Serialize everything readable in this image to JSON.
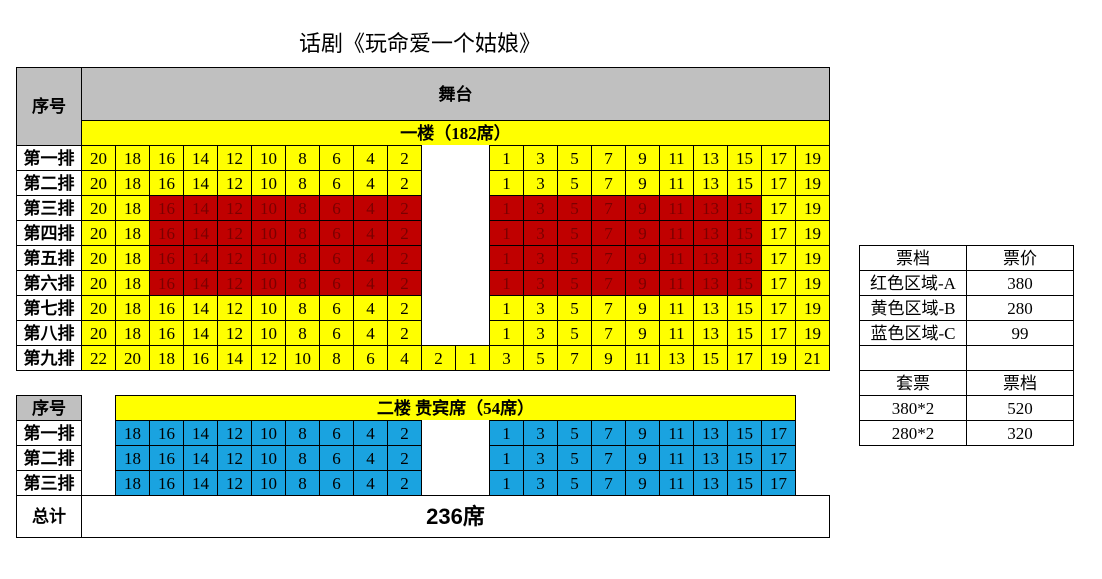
{
  "title": "话剧《玩命爱一个姑娘》",
  "colors": {
    "yellow": "#ffff00",
    "red": "#c00000",
    "blue": "#1aa3e0",
    "gray": "#c0c0c0"
  },
  "floor1": {
    "header_label": "序号",
    "stage": "舞台",
    "title": "一楼（182席）",
    "rows": [
      {
        "label": "第一排",
        "seats": [
          20,
          18,
          16,
          14,
          12,
          10,
          8,
          6,
          4,
          2,
          null,
          null,
          1,
          3,
          5,
          7,
          9,
          11,
          13,
          15,
          17,
          19
        ],
        "red": []
      },
      {
        "label": "第二排",
        "seats": [
          20,
          18,
          16,
          14,
          12,
          10,
          8,
          6,
          4,
          2,
          null,
          null,
          1,
          3,
          5,
          7,
          9,
          11,
          13,
          15,
          17,
          19
        ],
        "red": []
      },
      {
        "label": "第三排",
        "seats": [
          20,
          18,
          16,
          14,
          12,
          10,
          8,
          6,
          4,
          2,
          null,
          null,
          1,
          3,
          5,
          7,
          9,
          11,
          13,
          15,
          17,
          19
        ],
        "red": [
          2,
          3,
          4,
          5,
          6,
          7,
          8,
          9,
          12,
          13,
          14,
          15,
          16,
          17,
          18,
          19
        ]
      },
      {
        "label": "第四排",
        "seats": [
          20,
          18,
          16,
          14,
          12,
          10,
          8,
          6,
          4,
          2,
          null,
          null,
          1,
          3,
          5,
          7,
          9,
          11,
          13,
          15,
          17,
          19
        ],
        "red": [
          2,
          3,
          4,
          5,
          6,
          7,
          8,
          9,
          12,
          13,
          14,
          15,
          16,
          17,
          18,
          19
        ]
      },
      {
        "label": "第五排",
        "seats": [
          20,
          18,
          16,
          14,
          12,
          10,
          8,
          6,
          4,
          2,
          null,
          null,
          1,
          3,
          5,
          7,
          9,
          11,
          13,
          15,
          17,
          19
        ],
        "red": [
          2,
          3,
          4,
          5,
          6,
          7,
          8,
          9,
          12,
          13,
          14,
          15,
          16,
          17,
          18,
          19
        ]
      },
      {
        "label": "第六排",
        "seats": [
          20,
          18,
          16,
          14,
          12,
          10,
          8,
          6,
          4,
          2,
          null,
          null,
          1,
          3,
          5,
          7,
          9,
          11,
          13,
          15,
          17,
          19
        ],
        "red": [
          2,
          3,
          4,
          5,
          6,
          7,
          8,
          9,
          12,
          13,
          14,
          15,
          16,
          17,
          18,
          19
        ]
      },
      {
        "label": "第七排",
        "seats": [
          20,
          18,
          16,
          14,
          12,
          10,
          8,
          6,
          4,
          2,
          null,
          null,
          1,
          3,
          5,
          7,
          9,
          11,
          13,
          15,
          17,
          19
        ],
        "red": []
      },
      {
        "label": "第八排",
        "seats": [
          20,
          18,
          16,
          14,
          12,
          10,
          8,
          6,
          4,
          2,
          null,
          null,
          1,
          3,
          5,
          7,
          9,
          11,
          13,
          15,
          17,
          19
        ],
        "red": []
      },
      {
        "label": "第九排",
        "seats": [
          22,
          20,
          18,
          16,
          14,
          12,
          10,
          8,
          6,
          4,
          2,
          1,
          3,
          5,
          7,
          9,
          11,
          13,
          15,
          17,
          19,
          21
        ],
        "red": []
      }
    ]
  },
  "floor2": {
    "header_label": "序号",
    "title": "二楼 贵宾席（54席）",
    "rows": [
      {
        "label": "第一排",
        "seats": [
          null,
          18,
          16,
          14,
          12,
          10,
          8,
          6,
          4,
          2,
          null,
          null,
          1,
          3,
          5,
          7,
          9,
          11,
          13,
          15,
          17,
          null
        ]
      },
      {
        "label": "第二排",
        "seats": [
          null,
          18,
          16,
          14,
          12,
          10,
          8,
          6,
          4,
          2,
          null,
          null,
          1,
          3,
          5,
          7,
          9,
          11,
          13,
          15,
          17,
          null
        ]
      },
      {
        "label": "第三排",
        "seats": [
          null,
          18,
          16,
          14,
          12,
          10,
          8,
          6,
          4,
          2,
          null,
          null,
          1,
          3,
          5,
          7,
          9,
          11,
          13,
          15,
          17,
          null
        ]
      }
    ]
  },
  "total": {
    "label": "总计",
    "value": "236席"
  },
  "prices": {
    "header": [
      "票档",
      "票价"
    ],
    "rows": [
      [
        "红色区域-A",
        "380"
      ],
      [
        "黄色区域-B",
        "280"
      ],
      [
        "蓝色区域-C",
        "99"
      ],
      [
        "",
        ""
      ]
    ],
    "package_header": [
      "套票",
      "票档"
    ],
    "package_rows": [
      [
        "380*2",
        "520"
      ],
      [
        "280*2",
        "320"
      ]
    ]
  }
}
